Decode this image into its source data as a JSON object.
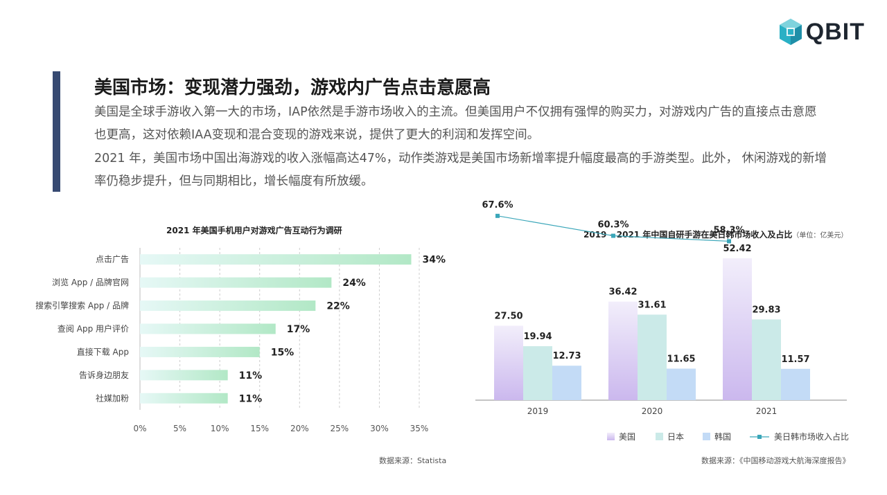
{
  "logo": {
    "text": "QBIT",
    "colors": [
      "#2ab0c5",
      "#1f8fa8",
      "#7fd3dd"
    ]
  },
  "heading": {
    "title": "美国市场：变现潜力强劲，游戏内广告点击意愿高",
    "para1": "美国是全球手游收入第一大的市场，IAP依然是手游市场收入的主流。但美国用户不仅拥有强悍的购买力，对游戏内广告的直接点击意愿也更高，这对依赖IAA变现和混合变现的游戏来说，提供了更大的利润和发挥空间。",
    "para2": "2021 年，美国市场中国出海游戏的收入涨幅高达47%，动作类游戏是美国市场新增率提升幅度最高的手游类型。此外， 休闲游戏的新增率仍稳步提升，但与同期相比，增长幅度有所放缓。",
    "accent_color": "#374a72"
  },
  "chart_data": [
    {
      "type": "bar",
      "orientation": "horizontal",
      "title": "2021 年美国手机用户对游戏广告互动行为调研",
      "categories": [
        "点击广告",
        "浏览 App / 品牌官网",
        "搜索引擎搜索 App / 品牌",
        "查阅 App 用户评价",
        "直接下载 App",
        "告诉身边朋友",
        "社媒加粉"
      ],
      "values": [
        34,
        24,
        22,
        17,
        15,
        11,
        11
      ],
      "value_labels": [
        "34%",
        "24%",
        "22%",
        "17%",
        "15%",
        "11%",
        "11%"
      ],
      "xlim": [
        0,
        35
      ],
      "xticks": [
        "0%",
        "5%",
        "10%",
        "15%",
        "20%",
        "25%",
        "30%",
        "35%"
      ],
      "grid": true,
      "colors": {
        "bar_start": "#e6f8f6",
        "bar_end": "#b2e8c6",
        "grid": "#cccccc"
      },
      "source": "数据来源：Statista"
    },
    {
      "type": "bar",
      "combo": "bar+line",
      "title": "2019 – 2021 年中国自研手游在美日韩市场收入及占比",
      "unit": "（单位：亿美元）",
      "categories": [
        "2019",
        "2020",
        "2021"
      ],
      "series": [
        {
          "name": "美国",
          "values": [
            27.5,
            36.42,
            52.42
          ],
          "labels": [
            "27.50",
            "36.42",
            "52.42"
          ],
          "color_top": "#f2eefb",
          "color_bottom": "#cbb8ee"
        },
        {
          "name": "日本",
          "values": [
            19.94,
            31.61,
            29.83
          ],
          "labels": [
            "19.94",
            "31.61",
            "29.83"
          ],
          "color": "#cbeae8"
        },
        {
          "name": "韩国",
          "values": [
            12.73,
            11.65,
            11.57
          ],
          "labels": [
            "12.73",
            "11.65",
            "11.57"
          ],
          "color": "#c3dbf6"
        }
      ],
      "line": {
        "name": "美日韩市场收入占比",
        "values": [
          67.6,
          60.3,
          58.3
        ],
        "labels": [
          "67.6%",
          "60.3%",
          "58.3%"
        ],
        "color": "#3aa6b9"
      },
      "ylim": [
        0,
        55
      ],
      "line_ylim": [
        0,
        80
      ],
      "source": "数据来源：《中国移动游戏大航海深度报告》"
    }
  ]
}
